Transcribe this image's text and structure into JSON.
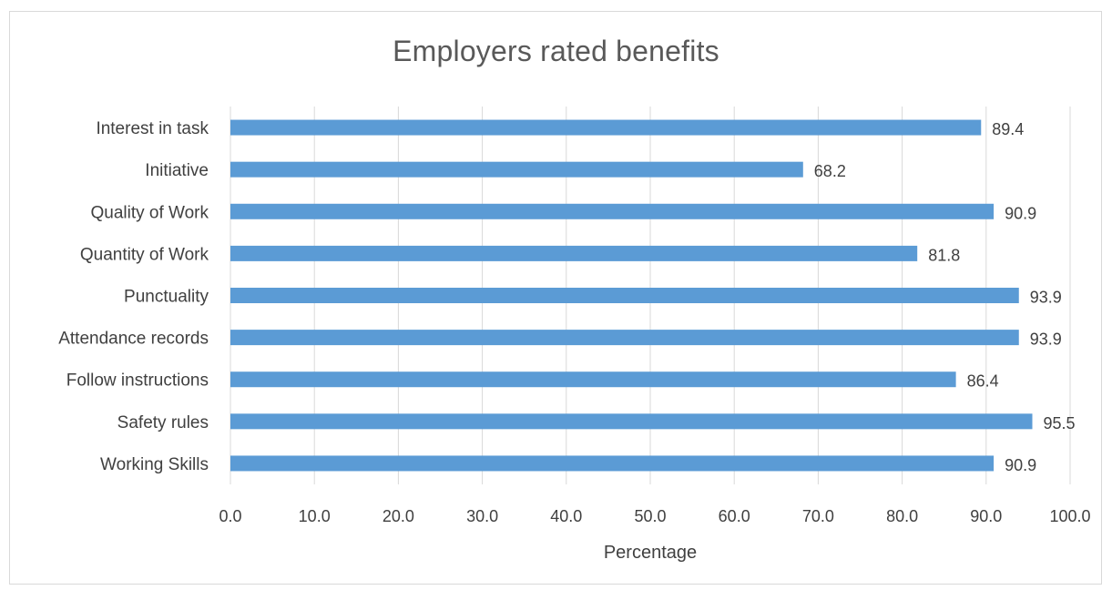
{
  "chart_data": {
    "type": "bar",
    "orientation": "horizontal",
    "title": "Employers rated benefits",
    "xlabel": "Percentage",
    "ylabel": "",
    "categories": [
      "Interest in task",
      "Initiative",
      "Quality of Work",
      "Quantity of Work",
      "Punctuality",
      "Attendance records",
      "Follow instructions",
      "Safety rules",
      "Working Skills"
    ],
    "values": [
      89.4,
      68.2,
      90.9,
      81.8,
      93.9,
      93.9,
      86.4,
      95.5,
      90.9
    ],
    "data_labels": [
      "89.4",
      "68.2",
      "90.9",
      "81.8",
      "93.9",
      "93.9",
      "86.4",
      "95.5",
      "90.9"
    ],
    "xlim": [
      0,
      100
    ],
    "xticks": [
      0,
      10,
      20,
      30,
      40,
      50,
      60,
      70,
      80,
      90,
      100
    ],
    "xtick_labels": [
      "0.0",
      "10.0",
      "20.0",
      "30.0",
      "40.0",
      "50.0",
      "60.0",
      "70.0",
      "80.0",
      "90.0",
      "100.0"
    ],
    "grid": true,
    "legend": "none",
    "colors": {
      "bar": "#5b9bd5",
      "grid": "#d9d9d9",
      "text": "#404040",
      "title": "#595959"
    }
  }
}
